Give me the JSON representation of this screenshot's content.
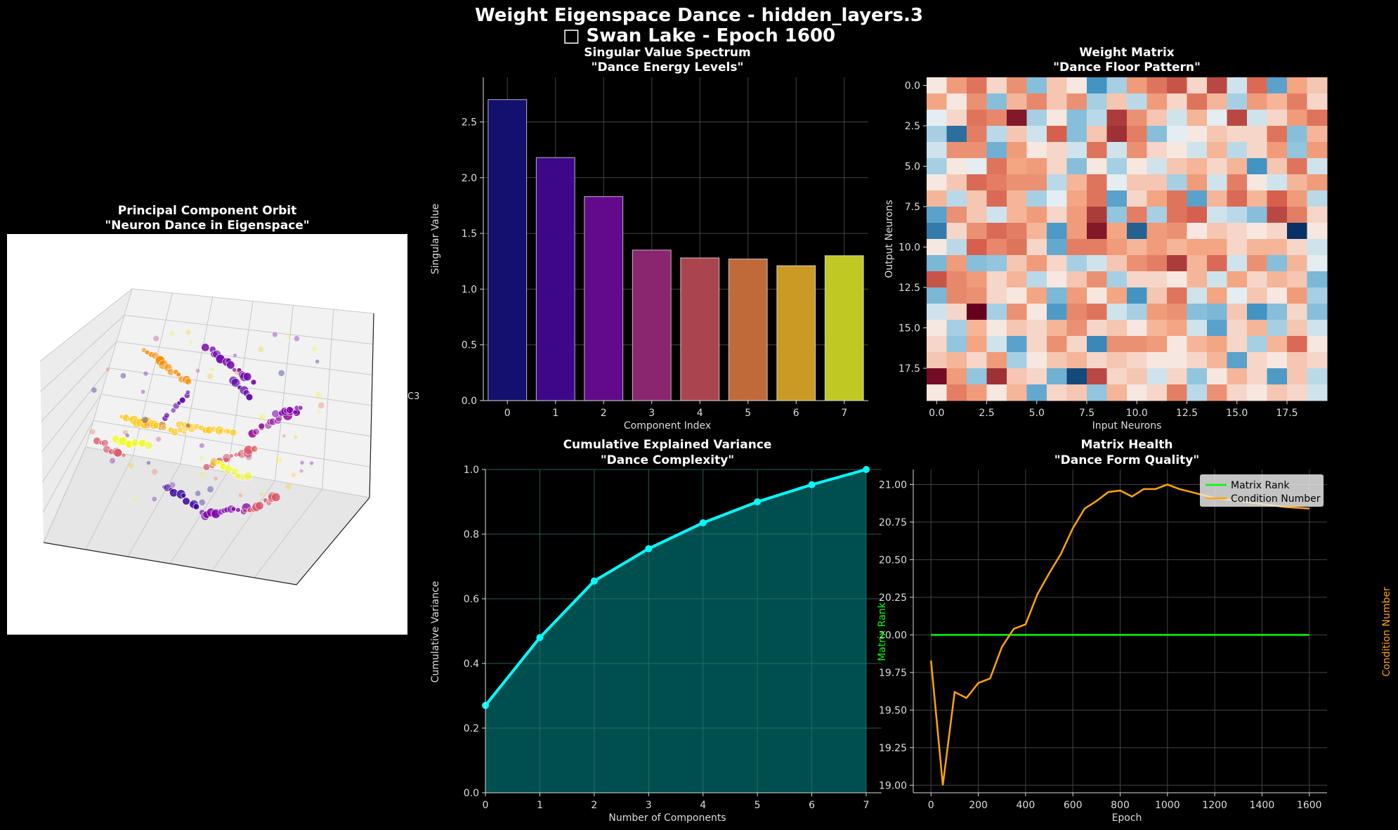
{
  "suptitle": {
    "line1": "Weight Eigenspace Dance - hidden_layers.3",
    "line2": "□ Swan Lake - Epoch 1600"
  },
  "colors": {
    "background": "#000000",
    "cumulative_line": "#00ffff",
    "cumulative_fill": "#004f4f",
    "rank_line": "#00ff00",
    "condition_line": "#ffa500",
    "grid": "#444444"
  },
  "chart_data": [
    {
      "id": "pca3d",
      "type": "scatter",
      "title": "Principal Component Orbit",
      "subtitle": "\"Neuron Dance in Eigenspace\"",
      "zlabel_fragment": "C3",
      "colormap": "plasma",
      "note": "3D scatter of projected neuron trajectories (white pane background)"
    },
    {
      "id": "singular",
      "type": "bar",
      "title": "Singular Value Spectrum",
      "subtitle": "\"Dance Energy Levels\"",
      "xlabel": "Component Index",
      "ylabel": "Singular Value",
      "categories": [
        "0",
        "1",
        "2",
        "3",
        "4",
        "5",
        "6",
        "7"
      ],
      "values": [
        2.7,
        2.18,
        1.83,
        1.35,
        1.28,
        1.27,
        1.21,
        1.3
      ],
      "colors": [
        "#0d0887",
        "#46039f",
        "#7201a8",
        "#9c179e",
        "#bd3786",
        "#d8576b",
        "#ed7953",
        "#fdb42f"
      ],
      "bar_colors_rendered": [
        "#14106e",
        "#3c0889",
        "#620a8a",
        "#8a2570",
        "#aa4550",
        "#c06a3a",
        "#cb9a24",
        "#c0c823"
      ],
      "ylim": [
        0,
        2.9
      ],
      "yticks": [
        "0.0",
        "0.5",
        "1.0",
        "1.5",
        "2.0",
        "2.5"
      ],
      "grid": true
    },
    {
      "id": "weights",
      "type": "heatmap",
      "title": "Weight Matrix",
      "subtitle": "\"Dance Floor Pattern\"",
      "xlabel": "Input Neurons",
      "ylabel": "Output Neurons",
      "colormap": "RdBu_r",
      "rows": 20,
      "cols": 20,
      "xticks": [
        "0.0",
        "2.5",
        "5.0",
        "7.5",
        "10.0",
        "12.5",
        "15.0",
        "17.5"
      ],
      "yticks": [
        "0.0",
        "2.5",
        "5.0",
        "7.5",
        "10.0",
        "12.5",
        "15.0",
        "17.5"
      ],
      "values": [
        [
          0.05,
          0.3,
          0.5,
          0.1,
          0.35,
          -0.3,
          0.15,
          0.05,
          -0.6,
          -0.2,
          0.3,
          0.5,
          0.65,
          0.1,
          0.7,
          -0.1,
          0.55,
          -0.5,
          0.25,
          0.15
        ],
        [
          0.25,
          0.05,
          0.35,
          -0.3,
          0.2,
          0.4,
          0.15,
          0.35,
          -0.2,
          0.15,
          -0.15,
          0.3,
          0.1,
          0.5,
          0.2,
          -0.2,
          0.3,
          0.2,
          0.45,
          0.1
        ],
        [
          -0.05,
          0.1,
          0.5,
          0.4,
          0.9,
          -0.2,
          0.05,
          -0.3,
          -0.15,
          0.75,
          0.35,
          0.15,
          -0.1,
          0.2,
          -0.05,
          0.7,
          -0.1,
          0.1,
          0.3,
          0.5
        ],
        [
          -0.2,
          -0.75,
          0.45,
          -0.15,
          0.15,
          -0.1,
          0.6,
          -0.3,
          0.15,
          0.8,
          0.45,
          -0.3,
          -0.05,
          0.05,
          0.15,
          0.1,
          0.1,
          0.5,
          -0.3,
          0.2
        ],
        [
          -0.1,
          0.35,
          0.35,
          -0.4,
          0.3,
          0.05,
          0.1,
          -0.1,
          0.5,
          -0.1,
          0.35,
          0.1,
          0.05,
          -0.1,
          0.2,
          -0.15,
          0.1,
          0.3,
          -0.25,
          0.3
        ],
        [
          -0.2,
          0.05,
          -0.05,
          0.5,
          0.25,
          0.3,
          0.1,
          -0.3,
          0.05,
          -0.2,
          0.05,
          -0.1,
          0.15,
          0.2,
          0.1,
          0.2,
          -0.6,
          0.15,
          0.5,
          -0.1
        ],
        [
          0.05,
          0.15,
          0.55,
          0.45,
          0.35,
          0.35,
          -0.15,
          0.2,
          0.5,
          -0.05,
          0.15,
          0.15,
          -0.2,
          0.3,
          -0.1,
          0.45,
          0.05,
          -0.1,
          0.2,
          0.3
        ],
        [
          0.2,
          -0.15,
          0.15,
          0.55,
          0.2,
          -0.2,
          -0.05,
          0.25,
          0.5,
          -0.5,
          0.1,
          0.25,
          0.5,
          -0.5,
          0.2,
          0.55,
          0.2,
          0.6,
          0.3,
          -0.15
        ],
        [
          -0.5,
          0.35,
          0.15,
          -0.1,
          0.2,
          0.3,
          0.1,
          0.3,
          0.75,
          -0.25,
          0.45,
          -0.2,
          0.5,
          0.6,
          -0.1,
          -0.15,
          -0.3,
          0.7,
          0.45,
          0.1
        ],
        [
          -0.7,
          0.1,
          0.35,
          0.55,
          0.45,
          0.2,
          -0.55,
          0.3,
          0.9,
          0.25,
          -0.8,
          0.3,
          0.35,
          0.05,
          0.15,
          0.1,
          0.05,
          0.1,
          -0.99,
          0.05
        ],
        [
          0.05,
          -0.15,
          0.6,
          0.4,
          0.5,
          0.1,
          -0.45,
          0.45,
          0.45,
          0.3,
          0.2,
          0.3,
          0.2,
          0.25,
          0.25,
          0.1,
          0.2,
          0.2,
          0.1,
          -0.1
        ],
        [
          -0.35,
          0.3,
          -0.3,
          -0.25,
          0.15,
          0.3,
          0.1,
          -0.2,
          -0.1,
          0.15,
          0.35,
          0.45,
          0.75,
          0.2,
          0.55,
          -0.1,
          0.35,
          -0.3,
          0.2,
          -0.05
        ],
        [
          0.65,
          0.4,
          0.3,
          0.1,
          0.2,
          -0.15,
          0.05,
          0.15,
          0.35,
          -0.2,
          0.1,
          0.1,
          0.05,
          0.2,
          -0.1,
          0.25,
          0.1,
          0.2,
          0.15,
          -0.35
        ],
        [
          -0.35,
          0.4,
          0.35,
          0.1,
          0.05,
          0.25,
          -0.35,
          0.3,
          0.05,
          0.25,
          -0.6,
          0.15,
          0.5,
          -0.1,
          0.25,
          -0.05,
          0.15,
          0.05,
          0.3,
          -0.2
        ],
        [
          -0.1,
          0.1,
          1.0,
          -0.2,
          0.35,
          0.05,
          -0.55,
          0.4,
          0.5,
          -0.1,
          -0.2,
          0.3,
          0.35,
          -0.3,
          -0.35,
          0.15,
          -0.6,
          -0.3,
          0.1,
          -0.3
        ],
        [
          0.05,
          -0.2,
          0.2,
          0.05,
          0.15,
          0.1,
          0.2,
          0.35,
          0.1,
          0.15,
          0.05,
          0.2,
          0.25,
          -0.1,
          -0.5,
          0.1,
          0.2,
          -0.2,
          0.15,
          -0.1
        ],
        [
          0.1,
          -0.25,
          0.25,
          -0.1,
          -0.5,
          0.1,
          0.35,
          0.1,
          -0.65,
          0.35,
          0.35,
          0.3,
          0.05,
          0.2,
          0.25,
          0.1,
          -0.2,
          0.2,
          0.55,
          0.05
        ],
        [
          0.15,
          0.2,
          0.1,
          0.3,
          -0.2,
          0.05,
          0.15,
          0.2,
          0.1,
          0.15,
          0.1,
          0.05,
          0.05,
          0.1,
          0.2,
          -0.5,
          0.1,
          0.05,
          0.15,
          0.1
        ],
        [
          0.95,
          0.3,
          -0.25,
          0.8,
          0.15,
          0.1,
          -0.4,
          -0.9,
          0.7,
          0.1,
          0.15,
          -0.1,
          0.1,
          -0.25,
          0.05,
          0.2,
          0.1,
          -0.55,
          0.15,
          -0.15
        ],
        [
          0.05,
          0.45,
          0.3,
          0.05,
          0.2,
          -0.45,
          0.1,
          0.15,
          -0.25,
          0.2,
          0.05,
          0.1,
          0.45,
          -0.15,
          0.35,
          0.1,
          0.05,
          0.15,
          0.1,
          -0.1
        ]
      ]
    },
    {
      "id": "cumvar",
      "type": "area",
      "title": "Cumulative Explained Variance",
      "subtitle": "\"Dance Complexity\"",
      "xlabel": "Number of Components",
      "ylabel": "Cumulative Variance",
      "x": [
        0,
        1,
        2,
        3,
        4,
        5,
        6,
        7
      ],
      "values": [
        0.27,
        0.48,
        0.655,
        0.755,
        0.835,
        0.9,
        0.953,
        1.0
      ],
      "xlim": [
        0,
        7
      ],
      "ylim": [
        0,
        1.0
      ],
      "yticks": [
        "0.0",
        "0.2",
        "0.4",
        "0.6",
        "0.8",
        "1.0"
      ],
      "grid": true
    },
    {
      "id": "health",
      "type": "line",
      "title": "Matrix Health",
      "subtitle": "\"Dance Form Quality\"",
      "xlabel": "Epoch",
      "ylabel_left": "Matrix Rank",
      "ylabel_right": "Condition Number",
      "xlim": [
        -75,
        1675
      ],
      "ylim": [
        18.95,
        21.1
      ],
      "xticks": [
        "0",
        "200",
        "400",
        "600",
        "800",
        "1000",
        "1200",
        "1400",
        "1600"
      ],
      "yticks": [
        "19.00",
        "19.25",
        "19.50",
        "19.75",
        "20.00",
        "20.25",
        "20.50",
        "20.75",
        "21.00"
      ],
      "legend_position": "top-right",
      "series": [
        {
          "name": "Matrix Rank",
          "x": [
            0,
            1600
          ],
          "values": [
            20.0,
            20.0
          ]
        },
        {
          "name": "Condition Number",
          "x": [
            0,
            50,
            100,
            150,
            200,
            250,
            300,
            350,
            400,
            450,
            500,
            550,
            600,
            650,
            700,
            750,
            800,
            850,
            900,
            950,
            1000,
            1050,
            1100,
            1150,
            1200,
            1250,
            1300,
            1350,
            1400,
            1450,
            1500,
            1550,
            1600
          ],
          "values": [
            19.83,
            19.0,
            19.62,
            19.58,
            19.68,
            19.71,
            19.92,
            20.04,
            20.07,
            20.27,
            20.41,
            20.54,
            20.71,
            20.84,
            20.89,
            20.95,
            20.96,
            20.92,
            20.97,
            20.97,
            21.0,
            20.97,
            20.95,
            20.93,
            20.91,
            20.9,
            20.89,
            20.88,
            20.87,
            20.86,
            20.85,
            20.845,
            20.84
          ]
        }
      ],
      "grid": true
    }
  ]
}
